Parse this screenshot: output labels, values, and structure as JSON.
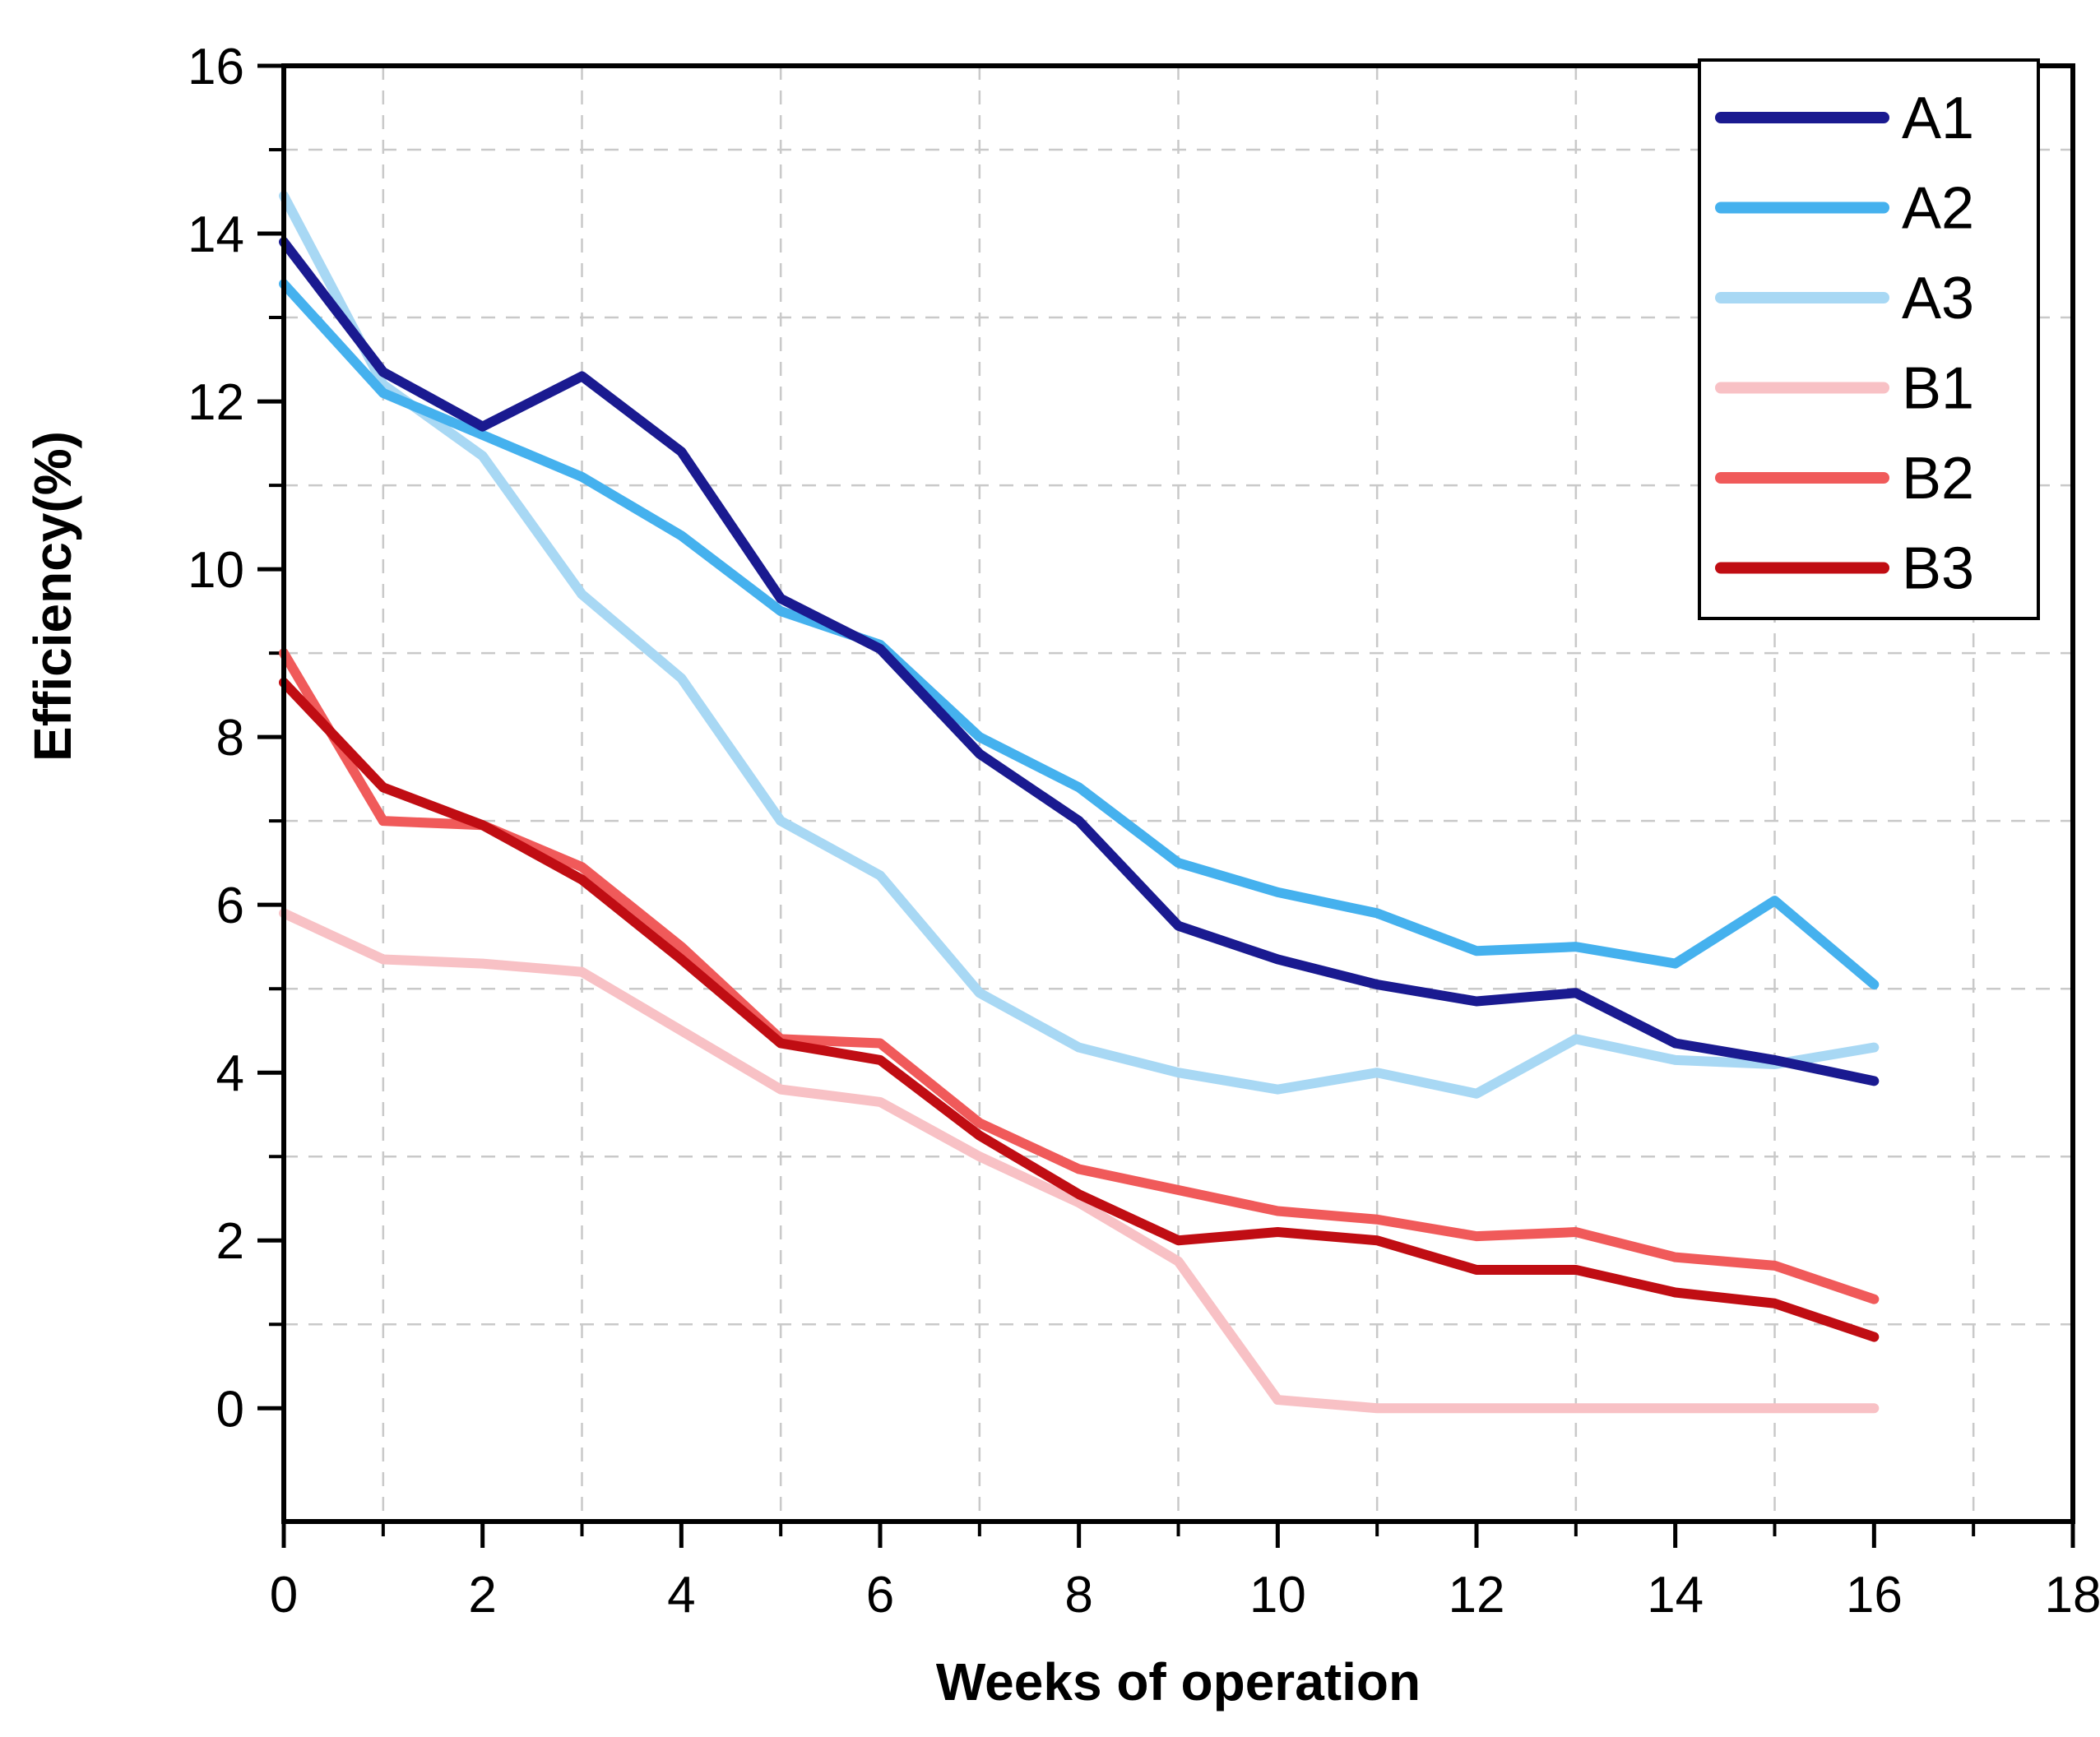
{
  "chart_data": {
    "type": "line",
    "title": "",
    "xlabel": "Weeks of operation",
    "ylabel": "Efficiency(%)",
    "x": [
      0,
      1,
      2,
      3,
      4,
      5,
      6,
      7,
      8,
      9,
      10,
      11,
      12,
      13,
      14,
      15,
      16
    ],
    "xlim": [
      0,
      18
    ],
    "ylim": [
      -1.35,
      16
    ],
    "x_major_ticks": [
      0,
      2,
      4,
      6,
      8,
      10,
      12,
      14,
      16,
      18
    ],
    "x_minor_ticks": [
      1,
      3,
      5,
      7,
      9,
      11,
      13,
      15,
      17
    ],
    "y_major_ticks": [
      0,
      2,
      4,
      6,
      8,
      10,
      12,
      14,
      16
    ],
    "y_minor_ticks": [
      1,
      3,
      5,
      7,
      9,
      11,
      13,
      15
    ],
    "grid_x": [
      1,
      3,
      5,
      7,
      9,
      11,
      13,
      15,
      17
    ],
    "grid_y": [
      1,
      3,
      5,
      7,
      9,
      11,
      13,
      15
    ],
    "grid_on": true,
    "grid_color": "#c9c9c9",
    "axis_color": "#000000",
    "background_color": "#ffffff",
    "legend_position": "top-right",
    "series": [
      {
        "name": "A1",
        "color": "#1a1a90",
        "values": [
          13.9,
          12.35,
          11.7,
          12.3,
          11.4,
          9.65,
          9.05,
          7.8,
          7.0,
          5.75,
          5.35,
          5.05,
          4.85,
          4.95,
          4.35,
          4.15,
          3.9
        ]
      },
      {
        "name": "A2",
        "color": "#45b1ee",
        "values": [
          13.4,
          12.1,
          11.6,
          11.1,
          10.4,
          9.5,
          9.1,
          8.0,
          7.4,
          6.5,
          6.15,
          5.9,
          5.45,
          5.5,
          5.3,
          6.05,
          5.05
        ]
      },
      {
        "name": "A3",
        "color": "#a8d8f4",
        "values": [
          14.45,
          12.2,
          11.35,
          9.7,
          8.7,
          7.0,
          6.35,
          4.95,
          4.3,
          4.0,
          3.8,
          4.0,
          3.75,
          4.4,
          4.15,
          4.1,
          4.3
        ]
      },
      {
        "name": "B1",
        "color": "#f8c1c5",
        "values": [
          5.9,
          5.35,
          5.3,
          5.2,
          4.5,
          3.8,
          3.65,
          3.0,
          2.45,
          1.75,
          0.1,
          0.0,
          0.0,
          0.0,
          0.0,
          0.0,
          0.0
        ]
      },
      {
        "name": "B2",
        "color": "#f05a5a",
        "values": [
          9.0,
          7.0,
          6.95,
          6.45,
          5.5,
          4.4,
          4.35,
          3.4,
          2.85,
          2.6,
          2.35,
          2.25,
          2.05,
          2.1,
          1.8,
          1.7,
          1.3
        ]
      },
      {
        "name": "B3",
        "color": "#c00d13",
        "values": [
          8.65,
          7.4,
          6.95,
          6.3,
          5.35,
          4.35,
          4.15,
          3.25,
          2.55,
          2.0,
          2.1,
          2.0,
          1.65,
          1.65,
          1.38,
          1.25,
          0.85
        ]
      }
    ],
    "z_order": [
      "B1",
      "B2",
      "B3",
      "A3",
      "A2",
      "A1"
    ]
  }
}
